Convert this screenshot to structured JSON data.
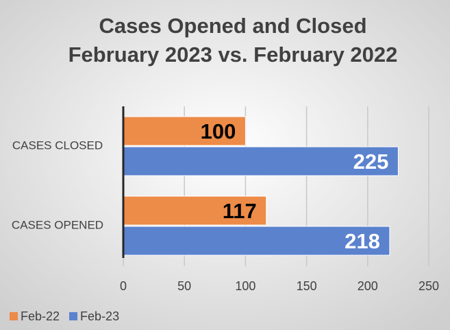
{
  "chart_data": {
    "type": "hbar",
    "title": [
      "Cases Opened and Closed",
      "February 2023 vs. February 2022"
    ],
    "categories": [
      "CASES CLOSED",
      "CASES OPENED"
    ],
    "series": [
      {
        "name": "Feb-22",
        "color": "#ed8b48",
        "values": [
          100,
          117
        ]
      },
      {
        "name": "Feb-23",
        "color": "#5b82cd",
        "values": [
          225,
          218
        ]
      }
    ],
    "xlim": [
      0,
      250
    ],
    "xticks": [
      0,
      50,
      100,
      150,
      200,
      250
    ],
    "grid": true,
    "legend": "bottom-left"
  }
}
